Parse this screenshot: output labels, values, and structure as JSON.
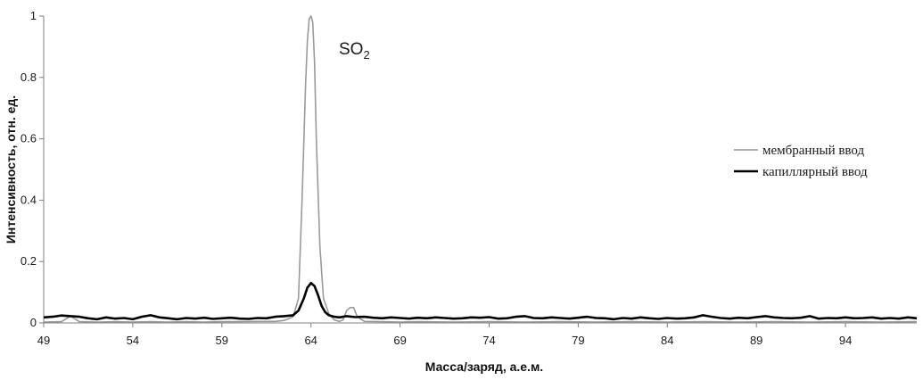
{
  "colors": {
    "membrane": "#9a9a9a",
    "capillary": "#000000",
    "axis": "#7f7f7f"
  },
  "chart_data": {
    "type": "line",
    "xlabel": "Масса/заряд, а.е.м.",
    "ylabel": "Интенсивность, отн. ед.",
    "xlim": [
      49,
      98
    ],
    "ylim": [
      0,
      1
    ],
    "xticks": [
      49,
      54,
      59,
      64,
      69,
      74,
      79,
      84,
      89,
      94
    ],
    "yticks": [
      0,
      0.2,
      0.4,
      0.6,
      0.8,
      1
    ],
    "grid": false,
    "legend_position": "right",
    "annotation": {
      "text": "SO",
      "subscript": "2",
      "x": 65.4,
      "y": 0.88
    },
    "series": [
      {
        "name": "мембранный ввод",
        "color": "#9a9a9a",
        "x": [
          49,
          50,
          50.5,
          51,
          52,
          53,
          54,
          55,
          56,
          57,
          58,
          59,
          60,
          61,
          62,
          62.5,
          63,
          63.3,
          63.5,
          63.7,
          63.8,
          63.9,
          64,
          64.1,
          64.2,
          64.3,
          64.5,
          64.7,
          65,
          65.3,
          65.6,
          65.8,
          66,
          66.2,
          66.4,
          66.6,
          67,
          68,
          69,
          70,
          72,
          74,
          76,
          78,
          80,
          82,
          84,
          86,
          88,
          90,
          92,
          94,
          96,
          98
        ],
        "y": [
          0.003,
          0.004,
          0.022,
          0.004,
          0.003,
          0.004,
          0.003,
          0.004,
          0.003,
          0.004,
          0.003,
          0.004,
          0.004,
          0.005,
          0.005,
          0.008,
          0.02,
          0.08,
          0.4,
          0.78,
          0.92,
          0.99,
          1.0,
          0.98,
          0.85,
          0.6,
          0.25,
          0.08,
          0.03,
          0.01,
          0.005,
          0.01,
          0.04,
          0.05,
          0.05,
          0.02,
          0.005,
          0.004,
          0.003,
          0.004,
          0.003,
          0.004,
          0.003,
          0.004,
          0.003,
          0.004,
          0.003,
          0.004,
          0.003,
          0.004,
          0.003,
          0.004,
          0.003,
          0.004
        ]
      },
      {
        "name": "капиллярный ввод",
        "color": "#000000",
        "x": [
          49,
          49.5,
          50,
          50.5,
          51,
          51.5,
          52,
          52.5,
          53,
          53.5,
          54,
          54.5,
          55,
          55.5,
          56,
          56.5,
          57,
          57.5,
          58,
          58.5,
          59,
          59.5,
          60,
          60.5,
          61,
          61.5,
          62,
          62.5,
          63,
          63.3,
          63.6,
          63.8,
          64,
          64.2,
          64.4,
          64.6,
          64.8,
          65,
          65.3,
          65.6,
          66,
          66.5,
          67,
          67.5,
          68,
          68.5,
          69,
          69.5,
          70,
          70.5,
          71,
          71.5,
          72,
          72.5,
          73,
          73.5,
          74,
          74.5,
          75,
          75.5,
          76,
          76.5,
          77,
          77.5,
          78,
          78.5,
          79,
          79.5,
          80,
          80.5,
          81,
          81.5,
          82,
          82.5,
          83,
          83.5,
          84,
          84.5,
          85,
          85.5,
          86,
          86.5,
          87,
          87.5,
          88,
          88.5,
          89,
          89.5,
          90,
          90.5,
          91,
          91.5,
          92,
          92.5,
          93,
          93.5,
          94,
          94.5,
          95,
          95.5,
          96,
          96.5,
          97,
          97.5,
          98
        ],
        "y": [
          0.018,
          0.02,
          0.024,
          0.022,
          0.02,
          0.015,
          0.012,
          0.018,
          0.014,
          0.016,
          0.012,
          0.02,
          0.025,
          0.018,
          0.015,
          0.012,
          0.016,
          0.014,
          0.017,
          0.013,
          0.015,
          0.017,
          0.014,
          0.013,
          0.016,
          0.015,
          0.02,
          0.022,
          0.025,
          0.04,
          0.08,
          0.115,
          0.13,
          0.12,
          0.09,
          0.055,
          0.035,
          0.025,
          0.02,
          0.018,
          0.022,
          0.019,
          0.02,
          0.017,
          0.015,
          0.018,
          0.016,
          0.014,
          0.017,
          0.015,
          0.018,
          0.016,
          0.014,
          0.015,
          0.018,
          0.017,
          0.019,
          0.014,
          0.015,
          0.02,
          0.022,
          0.016,
          0.015,
          0.018,
          0.016,
          0.014,
          0.017,
          0.02,
          0.016,
          0.015,
          0.012,
          0.016,
          0.014,
          0.018,
          0.015,
          0.013,
          0.016,
          0.014,
          0.015,
          0.018,
          0.025,
          0.02,
          0.016,
          0.014,
          0.017,
          0.015,
          0.019,
          0.022,
          0.018,
          0.016,
          0.015,
          0.017,
          0.022,
          0.014,
          0.016,
          0.015,
          0.018,
          0.015,
          0.016,
          0.018,
          0.014,
          0.016,
          0.014,
          0.018,
          0.015
        ]
      }
    ]
  }
}
